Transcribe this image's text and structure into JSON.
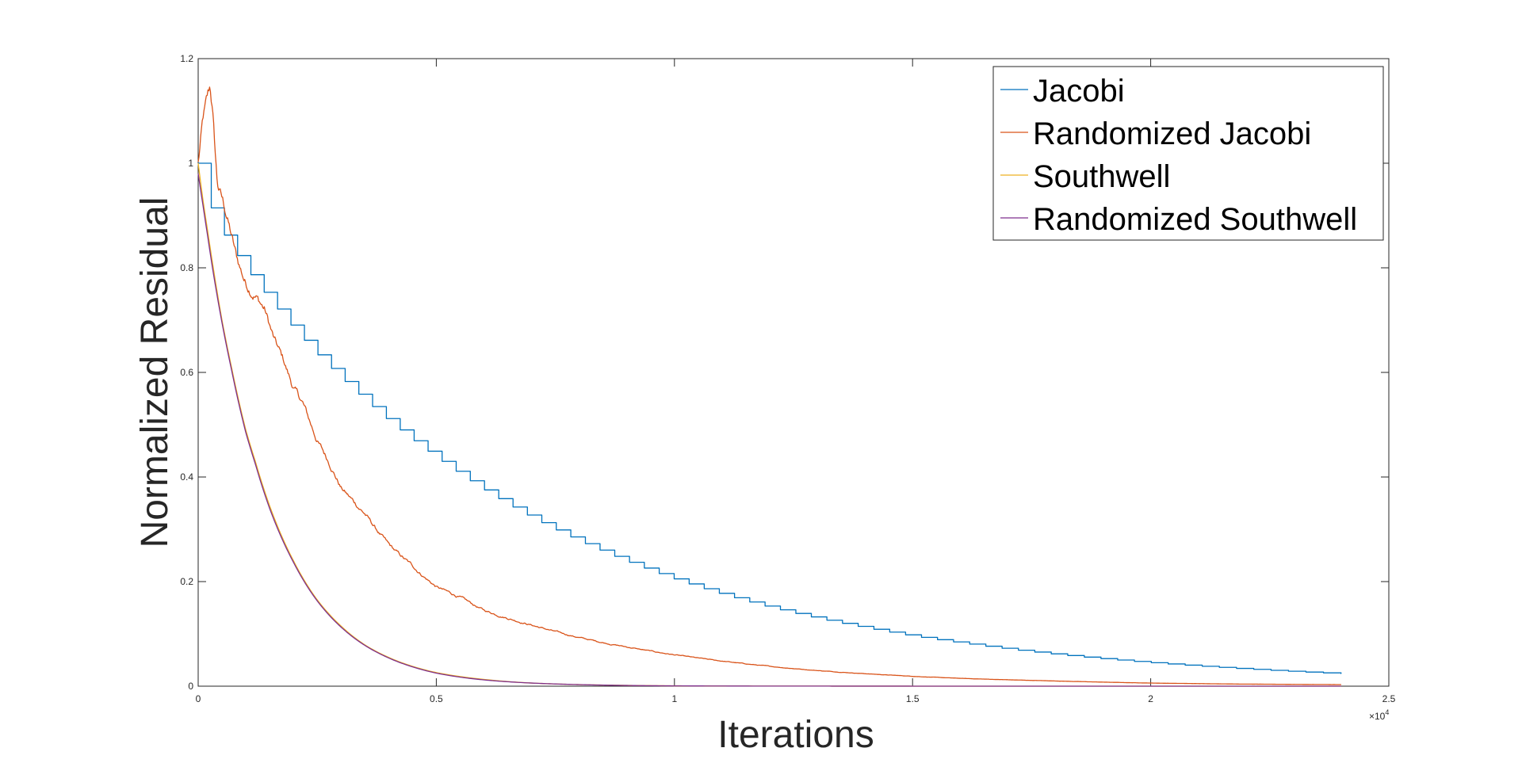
{
  "chart_data": {
    "type": "line",
    "title": "",
    "xlabel": "Iterations",
    "ylabel": "Normalized Residual",
    "x_exponent_label": "×10",
    "x_exponent_power": "4",
    "xlim": [
      0,
      2.5
    ],
    "ylim": [
      0,
      1.2
    ],
    "x_ticks": [
      0,
      0.5,
      1,
      1.5,
      2,
      2.5
    ],
    "x_tick_labels": [
      "0",
      "0.5",
      "1",
      "1.5",
      "2",
      "2.5"
    ],
    "y_ticks": [
      0,
      0.2,
      0.4,
      0.6,
      0.8,
      1,
      1.2
    ],
    "y_tick_labels": [
      "0",
      "0.2",
      "0.4",
      "0.6",
      "0.8",
      "1",
      "1.2"
    ],
    "grid": false,
    "legend_position": "top-right",
    "series": [
      {
        "name": "Jacobi",
        "color": "#0072BD",
        "style": "staircase",
        "x": [
          0,
          0.02,
          0.05,
          0.1,
          0.15,
          0.2,
          0.25,
          0.3,
          0.35,
          0.4,
          0.5,
          0.6,
          0.7,
          0.8,
          0.9,
          1.0,
          1.1,
          1.2,
          1.3,
          1.4,
          1.5,
          1.6,
          1.8,
          2.0,
          2.2,
          2.4
        ],
        "values": [
          1.0,
          0.93,
          0.87,
          0.8,
          0.74,
          0.685,
          0.635,
          0.59,
          0.548,
          0.508,
          0.438,
          0.376,
          0.323,
          0.278,
          0.239,
          0.205,
          0.176,
          0.151,
          0.13,
          0.112,
          0.096,
          0.083,
          0.061,
          0.045,
          0.033,
          0.024
        ]
      },
      {
        "name": "Randomized Jacobi",
        "color": "#D95319",
        "style": "noisy",
        "x": [
          0,
          0.01,
          0.02,
          0.025,
          0.03,
          0.04,
          0.05,
          0.06,
          0.07,
          0.08,
          0.1,
          0.12,
          0.14,
          0.16,
          0.18,
          0.2,
          0.22,
          0.25,
          0.28,
          0.3,
          0.35,
          0.4,
          0.45,
          0.5,
          0.55,
          0.6,
          0.7,
          0.8,
          0.9,
          1.0,
          1.1,
          1.2,
          1.3,
          1.4,
          1.5,
          1.6,
          1.8,
          2.0,
          2.2,
          2.4
        ],
        "values": [
          1.0,
          1.08,
          1.12,
          1.14,
          1.1,
          0.96,
          0.93,
          0.9,
          0.86,
          0.82,
          0.77,
          0.75,
          0.72,
          0.66,
          0.62,
          0.57,
          0.54,
          0.47,
          0.42,
          0.38,
          0.33,
          0.27,
          0.23,
          0.19,
          0.17,
          0.145,
          0.117,
          0.093,
          0.075,
          0.06,
          0.048,
          0.038,
          0.03,
          0.024,
          0.019,
          0.015,
          0.01,
          0.006,
          0.004,
          0.003
        ]
      },
      {
        "name": "Southwell",
        "color": "#EDB120",
        "style": "smooth",
        "x": [
          0,
          0.01,
          0.02,
          0.03,
          0.05,
          0.07,
          0.1,
          0.12,
          0.15,
          0.2,
          0.25,
          0.3,
          0.35,
          0.4,
          0.45,
          0.5,
          0.6,
          0.7,
          0.8,
          0.9,
          1.0,
          1.2,
          1.4,
          1.6,
          2.0,
          2.4
        ],
        "values": [
          1.0,
          0.93,
          0.87,
          0.81,
          0.7,
          0.61,
          0.49,
          0.43,
          0.345,
          0.24,
          0.165,
          0.115,
          0.079,
          0.055,
          0.038,
          0.026,
          0.013,
          0.006,
          0.003,
          0.0015,
          0.0007,
          0.0002,
          0.0001,
          0.0,
          0.0,
          0.0
        ]
      },
      {
        "name": "Randomized Southwell",
        "color": "#7E2F8E",
        "style": "smooth",
        "x": [
          0,
          0.01,
          0.02,
          0.03,
          0.05,
          0.07,
          0.1,
          0.12,
          0.15,
          0.2,
          0.25,
          0.3,
          0.35,
          0.4,
          0.45,
          0.5,
          0.6,
          0.7,
          0.8,
          0.9,
          1.0,
          1.2,
          1.4,
          1.6,
          2.0,
          2.4
        ],
        "values": [
          0.98,
          0.92,
          0.86,
          0.8,
          0.695,
          0.605,
          0.485,
          0.425,
          0.34,
          0.237,
          0.163,
          0.113,
          0.078,
          0.054,
          0.037,
          0.025,
          0.012,
          0.006,
          0.003,
          0.0014,
          0.0006,
          0.0002,
          0.0001,
          0.0,
          0.0,
          0.0
        ]
      }
    ]
  }
}
